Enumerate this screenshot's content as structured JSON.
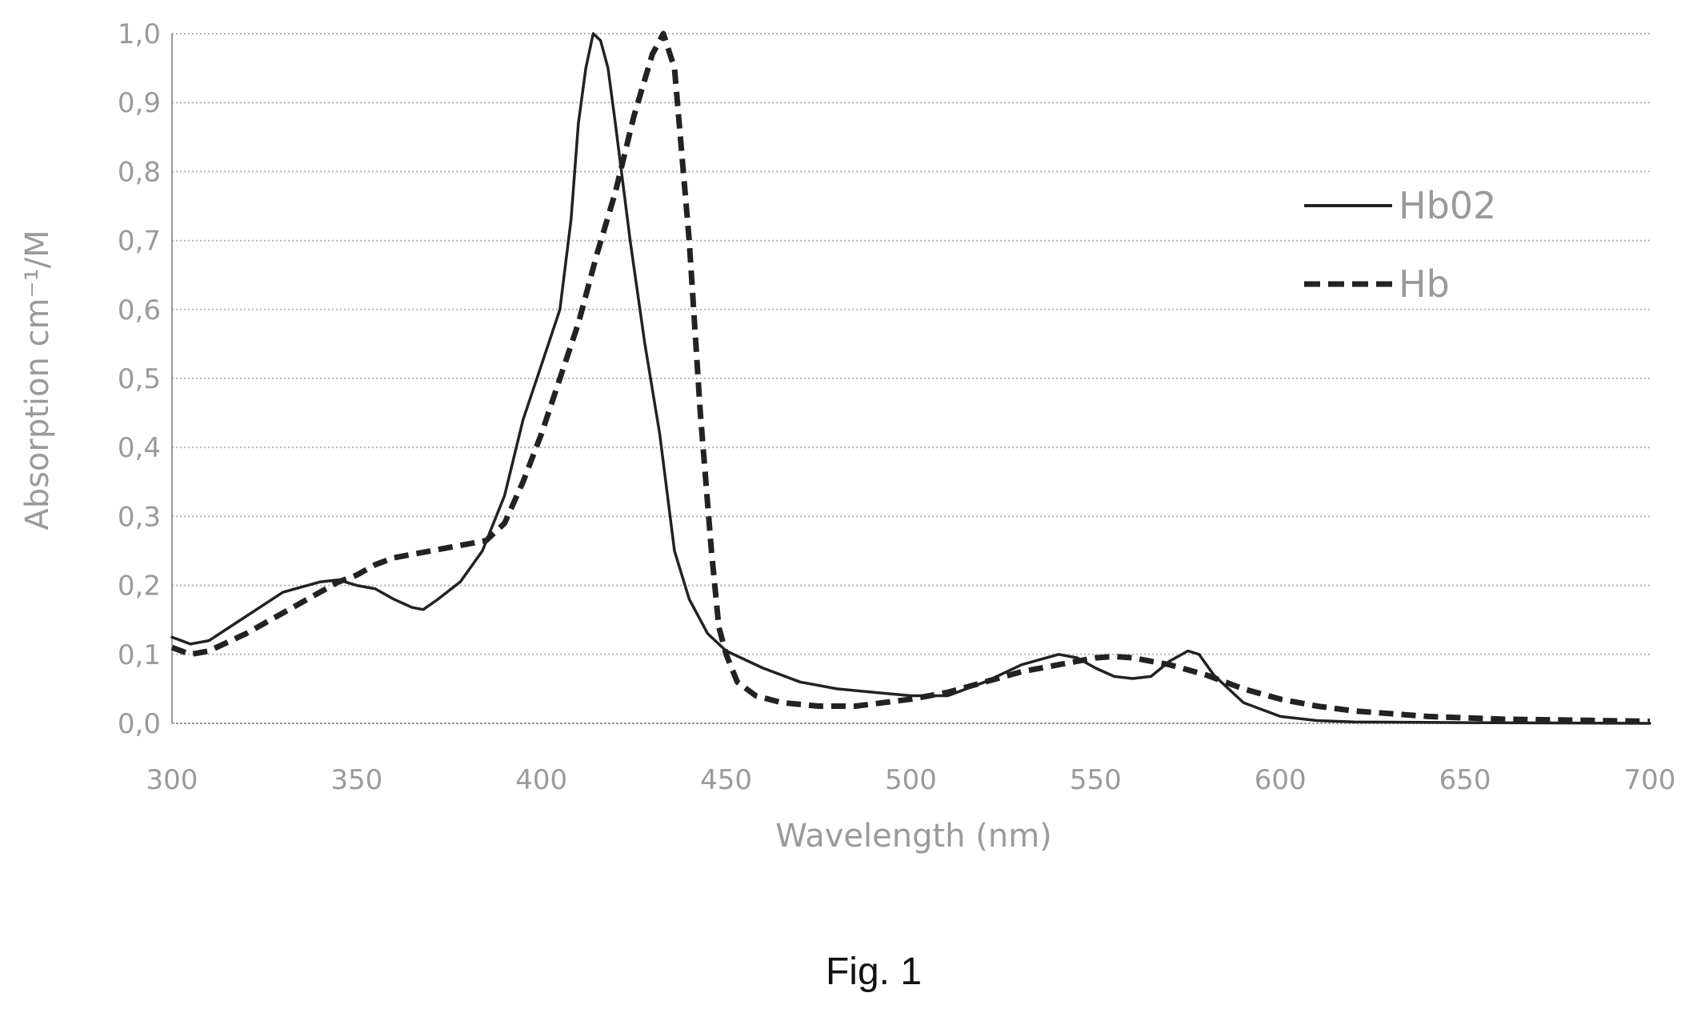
{
  "figure": {
    "caption": "Fig. 1"
  },
  "chart_data": {
    "type": "line",
    "xlabel": "Wavelength (nm)",
    "ylabel": "Absorption cm⁻¹/M",
    "xlim": [
      300,
      700
    ],
    "ylim": [
      0,
      1.0
    ],
    "xticks": [
      "300",
      "350",
      "400",
      "450",
      "500",
      "550",
      "600",
      "650",
      "700"
    ],
    "yticks": [
      "0,0",
      "0,1",
      "0,2",
      "0,3",
      "0,4",
      "0,5",
      "0,6",
      "0,7",
      "0,8",
      "0,9",
      "1,0"
    ],
    "grid": true,
    "legend_position": "right",
    "series": [
      {
        "name": "Hb02",
        "style": "solid",
        "color": "#222222",
        "x": [
          300,
          305,
          310,
          320,
          330,
          340,
          345,
          350,
          355,
          360,
          365,
          368,
          372,
          378,
          384,
          390,
          395,
          400,
          405,
          408,
          410,
          412,
          414,
          416,
          418,
          420,
          424,
          428,
          432,
          436,
          440,
          445,
          450,
          460,
          470,
          480,
          490,
          500,
          510,
          520,
          530,
          540,
          545,
          550,
          555,
          560,
          565,
          570,
          575,
          578,
          582,
          590,
          600,
          610,
          620,
          650,
          700
        ],
        "y": [
          0.125,
          0.115,
          0.12,
          0.155,
          0.19,
          0.205,
          0.208,
          0.2,
          0.195,
          0.18,
          0.168,
          0.165,
          0.18,
          0.205,
          0.25,
          0.33,
          0.44,
          0.52,
          0.6,
          0.73,
          0.87,
          0.95,
          1.0,
          0.99,
          0.95,
          0.87,
          0.7,
          0.55,
          0.42,
          0.25,
          0.18,
          0.13,
          0.105,
          0.08,
          0.06,
          0.05,
          0.045,
          0.04,
          0.04,
          0.06,
          0.085,
          0.1,
          0.095,
          0.08,
          0.068,
          0.065,
          0.068,
          0.09,
          0.105,
          0.1,
          0.07,
          0.03,
          0.01,
          0.004,
          0.002,
          0.001,
          0.0
        ]
      },
      {
        "name": "Hb",
        "style": "dashed",
        "color": "#222222",
        "x": [
          300,
          305,
          310,
          320,
          330,
          340,
          345,
          350,
          355,
          360,
          365,
          370,
          375,
          380,
          385,
          390,
          395,
          400,
          405,
          410,
          415,
          420,
          425,
          430,
          433,
          436,
          440,
          443,
          446,
          448,
          450,
          453,
          458,
          465,
          475,
          485,
          500,
          510,
          520,
          530,
          540,
          550,
          555,
          560,
          570,
          580,
          590,
          600,
          610,
          620,
          640,
          660,
          700
        ],
        "y": [
          0.11,
          0.1,
          0.105,
          0.13,
          0.16,
          0.19,
          0.205,
          0.215,
          0.23,
          0.24,
          0.245,
          0.25,
          0.255,
          0.26,
          0.265,
          0.29,
          0.35,
          0.42,
          0.5,
          0.58,
          0.68,
          0.77,
          0.88,
          0.97,
          1.0,
          0.95,
          0.7,
          0.45,
          0.25,
          0.14,
          0.1,
          0.06,
          0.04,
          0.03,
          0.025,
          0.025,
          0.035,
          0.045,
          0.06,
          0.075,
          0.085,
          0.095,
          0.097,
          0.095,
          0.085,
          0.07,
          0.05,
          0.035,
          0.025,
          0.018,
          0.01,
          0.006,
          0.003
        ]
      }
    ]
  }
}
